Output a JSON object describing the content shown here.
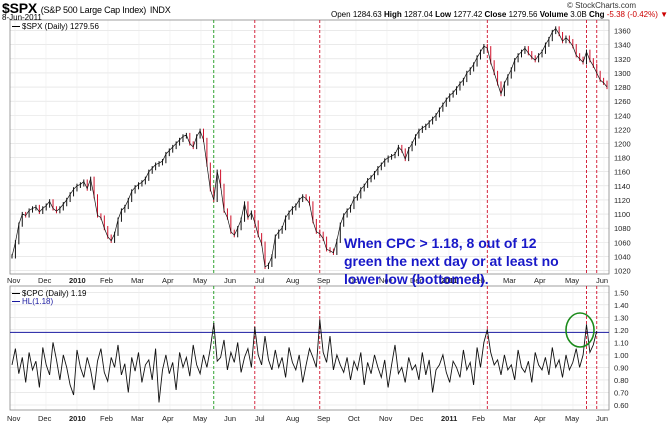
{
  "header": {
    "symbol": "$SPX",
    "symbol_desc": "(S&P 500 Large Cap Index)",
    "exchange": "INDX",
    "date": "8-Jun-2011",
    "open_label": "Open",
    "open": "1284.63",
    "high_label": "High",
    "high": "1287.04",
    "low_label": "Low",
    "low": "1277.42",
    "close_label": "Close",
    "close": "1279.56",
    "volume_label": "Volume",
    "volume": "3.0B",
    "chg_label": "Chg",
    "chg": "-5.38 (-0.42%)",
    "chg_arrow": "▼",
    "watermark": "© StockCharts.com"
  },
  "annotation": "When CPC > 1.18, 8 out of 12 green the next day or at least no lower low (bottomed).",
  "chart_data": [
    {
      "type": "line",
      "panel": "price",
      "legend": "$SPX (Daily) 1279.56",
      "ylim": [
        1015,
        1375
      ],
      "yticks": [
        1020,
        1040,
        1060,
        1080,
        1100,
        1120,
        1140,
        1160,
        1180,
        1200,
        1220,
        1240,
        1260,
        1280,
        1300,
        1320,
        1340,
        1360
      ],
      "xticks": [
        "Nov",
        "Dec",
        "2010",
        "Feb",
        "Mar",
        "Apr",
        "May",
        "Jun",
        "Jul",
        "Aug",
        "Sep",
        "Oct",
        "Nov",
        "Dec",
        "2011",
        "Feb",
        "Mar",
        "Apr",
        "May",
        "Jun"
      ],
      "bold_ticks": [
        "2010",
        "2011"
      ],
      "series": [
        {
          "values": [
            1040,
            1060,
            1085,
            1100,
            1098,
            1105,
            1108,
            1110,
            1103,
            1108,
            1112,
            1118,
            1108,
            1104,
            1108,
            1114,
            1120,
            1128,
            1135,
            1140,
            1142,
            1146,
            1136,
            1150,
            1125,
            1098,
            1095,
            1080,
            1068,
            1062,
            1072,
            1092,
            1105,
            1110,
            1120,
            1132,
            1138,
            1142,
            1145,
            1150,
            1160,
            1165,
            1170,
            1172,
            1175,
            1185,
            1190,
            1195,
            1200,
            1205,
            1210,
            1212,
            1200,
            1195,
            1210,
            1218,
            1205,
            1170,
            1135,
            1120,
            1160,
            1140,
            1105,
            1095,
            1075,
            1070,
            1080,
            1092,
            1115,
            1095,
            1102,
            1088,
            1070,
            1058,
            1025,
            1028,
            1040,
            1068,
            1075,
            1080,
            1095,
            1102,
            1108,
            1112,
            1120,
            1125,
            1122,
            1115,
            1090,
            1075,
            1072,
            1065,
            1050,
            1048,
            1045,
            1062,
            1085,
            1098,
            1105,
            1110,
            1122,
            1125,
            1135,
            1140,
            1148,
            1152,
            1158,
            1165,
            1170,
            1176,
            1180,
            1182,
            1185,
            1195,
            1190,
            1178,
            1192,
            1200,
            1210,
            1218,
            1222,
            1225,
            1230,
            1235,
            1240,
            1248,
            1255,
            1262,
            1268,
            1272,
            1278,
            1285,
            1290,
            1300,
            1305,
            1312,
            1322,
            1330,
            1338,
            1335,
            1315,
            1300,
            1285,
            1270,
            1285,
            1295,
            1305,
            1318,
            1325,
            1330,
            1335,
            1328,
            1322,
            1318,
            1325,
            1330,
            1340,
            1348,
            1358,
            1363,
            1355,
            1345,
            1350,
            1345,
            1338,
            1325,
            1320,
            1315,
            1330,
            1318,
            1310,
            1300,
            1290,
            1286,
            1280
          ]
        }
      ]
    },
    {
      "type": "line",
      "panel": "indicator",
      "legend": "$CPC (Daily) 1.19",
      "hline_legend": "HL(1.18)",
      "hline": 1.18,
      "ylim": [
        0.56,
        1.55
      ],
      "yticks": [
        0.6,
        0.7,
        0.8,
        0.9,
        1.0,
        1.1,
        1.2,
        1.3,
        1.4,
        1.5
      ],
      "ytick_labels": [
        "0.60",
        "0.70",
        "0.80",
        "0.90",
        "1.00",
        "1.10",
        "1.20",
        "1.30",
        "1.40",
        "1.50"
      ],
      "series": [
        {
          "values": [
            0.92,
            1.05,
            0.85,
            0.98,
            0.78,
            1.02,
            0.88,
            0.95,
            0.74,
            1.06,
            0.92,
            0.84,
            1.1,
            0.96,
            0.8,
            1.0,
            0.9,
            0.76,
            0.68,
            1.04,
            0.9,
            0.82,
            0.98,
            0.88,
            0.72,
            0.95,
            1.05,
            0.86,
            0.79,
            0.98,
            0.9,
            1.08,
            0.84,
            0.93,
            0.7,
            0.98,
            0.87,
            1.02,
            0.78,
            0.92,
            0.96,
            0.8,
            1.05,
            0.62,
            0.88,
            1.0,
            0.85,
            0.94,
            0.72,
            1.02,
            0.9,
            0.98,
            0.83,
            1.08,
            0.92,
            0.85,
            1.0,
            0.9,
            1.05,
            1.25,
            0.95,
            0.98,
            1.12,
            0.88,
            1.02,
            0.94,
            1.1,
            0.86,
            0.98,
            1.05,
            0.9,
            1.22,
            1.0,
            0.92,
            1.15,
            0.96,
            0.88,
            1.04,
            0.9,
            0.98,
            0.82,
            1.06,
            0.94,
            0.88,
            1.0,
            0.78,
            0.92,
            1.05,
            0.98,
            0.9,
            1.28,
            1.02,
            0.94,
            1.15,
            0.88,
            1.0,
            0.92,
            0.86,
            0.98,
            0.8,
            0.95,
            0.88,
            1.02,
            0.76,
            0.94,
            0.85,
            1.0,
            0.9,
            0.82,
            0.96,
            0.74,
            0.92,
            1.08,
            0.85,
            0.9,
            0.78,
            0.98,
            0.88,
            0.92,
            0.8,
            1.02,
            0.84,
            0.96,
            0.7,
            0.88,
            0.92,
            1.0,
            0.86,
            0.78,
            0.95,
            0.9,
            0.82,
            1.04,
            0.88,
            0.94,
            0.76,
            1.06,
            0.9,
            1.1,
            1.2,
            1.02,
            0.92,
            0.96,
            0.84,
            1.0,
            0.88,
            0.92,
            0.8,
            1.04,
            0.9,
            0.86,
            0.95,
            0.78,
            1.02,
            0.92,
            0.88,
            0.98,
            0.84,
            1.06,
            0.9,
            0.96,
            0.82,
            1.0,
            0.88,
            0.94,
            1.05,
            0.9,
            1.0,
            1.24,
            1.02,
            1.08,
            1.19
          ]
        }
      ]
    }
  ]
}
